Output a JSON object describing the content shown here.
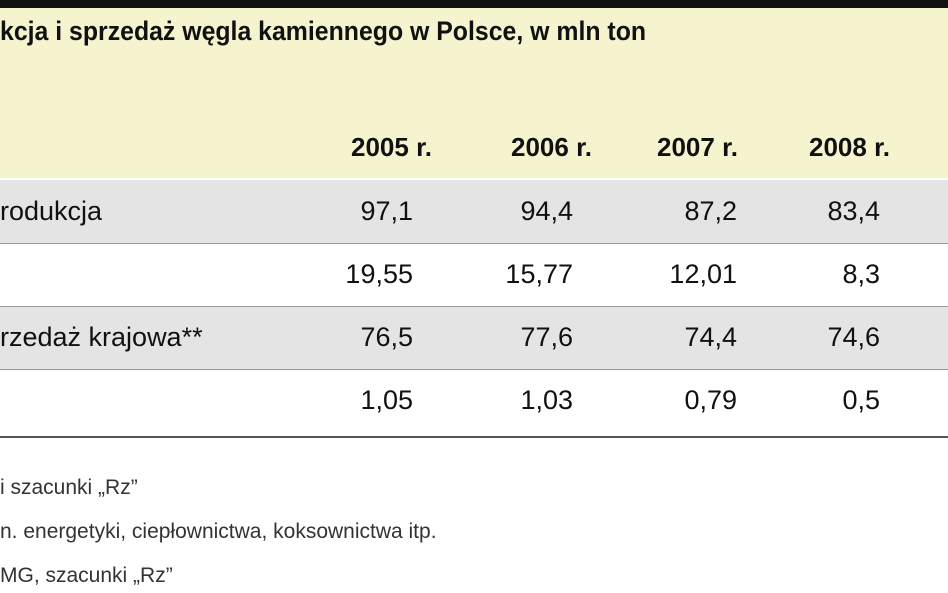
{
  "title": "kcja i sprzedaż węgla kamiennego w Polsce, w mln ton",
  "table": {
    "header": [
      "2005 r.",
      "2006 r.",
      "2007 r.",
      "2008 r."
    ],
    "rows": [
      {
        "label": "rodukcja",
        "cells": [
          "97,1",
          "94,4",
          "87,2",
          "83,4"
        ]
      },
      {
        "cells": [
          "19,55",
          "15,77",
          "12,01",
          "8,3"
        ]
      },
      {
        "label": "rzedaż krajowa**",
        "cells": [
          "76,5",
          "77,6",
          "74,4",
          "74,6"
        ]
      },
      {
        "cells": [
          "1,05",
          "1,03",
          "0,79",
          "0,5"
        ]
      }
    ]
  },
  "footnotes": [
    "i szacunki „Rz”",
    "n. energetyki, ciepłownictwa, koksownictwa itp.",
    "MG, szacunki „Rz”"
  ]
}
